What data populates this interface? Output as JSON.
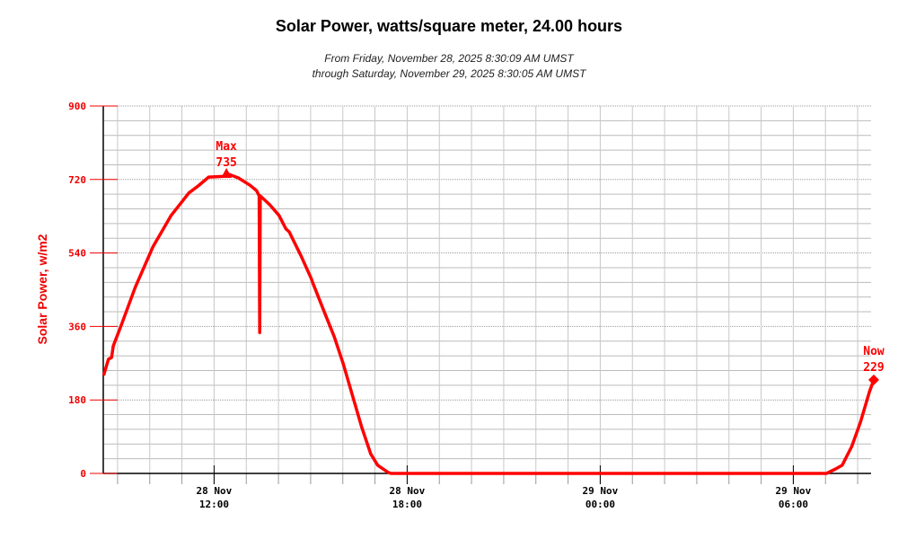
{
  "chart_data": {
    "type": "line",
    "title": "Solar Power, watts/square meter, 24.00 hours",
    "subtitle_line1": "From Friday, November 28, 2025 8:30:09 AM UMST",
    "subtitle_line2": "through Saturday, November 29, 2025 8:30:05 AM UMST",
    "ylabel": "Solar Power, w/m2",
    "xlabel": "",
    "ylim": [
      0,
      900
    ],
    "xlim": [
      "2025-11-28T08:30",
      "2025-11-29T08:30"
    ],
    "y_ticks": [
      0,
      180,
      360,
      540,
      720,
      900
    ],
    "x_ticks": [
      {
        "time": "2025-11-28T12:00",
        "line1": "28 Nov",
        "line2": "12:00"
      },
      {
        "time": "2025-11-28T18:00",
        "line1": "28 Nov",
        "line2": "18:00"
      },
      {
        "time": "2025-11-29T00:00",
        "line1": "29 Nov",
        "line2": "00:00"
      },
      {
        "time": "2025-11-29T06:00",
        "line1": "29 Nov",
        "line2": "06:00"
      }
    ],
    "grid": true,
    "color": "#ff0000",
    "series": [
      {
        "x": [
          "2025-11-28T08:34",
          "2025-11-28T08:43",
          "2025-11-28T08:49",
          "2025-11-28T08:52",
          "2025-11-28T09:08",
          "2025-11-28T09:33",
          "2025-11-28T10:06",
          "2025-11-28T10:40",
          "2025-11-28T11:13",
          "2025-11-28T11:30",
          "2025-11-28T11:50",
          "2025-11-28T12:20",
          "2025-11-28T12:23",
          "2025-11-28T12:45",
          "2025-11-28T13:07",
          "2025-11-28T13:19",
          "2025-11-28T13:24",
          "2025-11-28T13:25",
          "2025-11-28T13:26",
          "2025-11-28T13:44",
          "2025-11-28T14:01",
          "2025-11-28T14:14",
          "2025-11-28T14:20",
          "2025-11-28T14:42",
          "2025-11-28T15:01",
          "2025-11-28T15:04",
          "2025-11-28T15:24",
          "2025-11-28T15:44",
          "2025-11-28T16:01",
          "2025-11-28T16:18",
          "2025-11-28T16:35",
          "2025-11-28T16:52",
          "2025-11-28T17:05",
          "2025-11-28T17:25",
          "2025-11-28T17:30",
          "2025-11-29T07:02",
          "2025-11-29T07:19",
          "2025-11-29T07:31",
          "2025-11-29T07:49",
          "2025-11-29T08:05",
          "2025-11-29T08:22",
          "2025-11-29T08:30"
        ],
        "values": [
          240,
          280,
          284,
          312,
          367,
          456,
          555,
          632,
          687,
          704,
          726,
          728,
          735,
          724,
          706,
          693,
          680,
          345,
          680,
          658,
          632,
          599,
          592,
          533,
          478,
          467,
          400,
          335,
          268,
          191,
          114,
          48,
          20,
          2,
          0,
          0,
          11,
          20,
          66,
          125,
          200,
          229
        ]
      }
    ],
    "annotations": [
      {
        "label": "Max",
        "value": "735",
        "time": "2025-11-28T12:23",
        "y": 735,
        "marker": "triangle"
      },
      {
        "label": "Now",
        "value": "229",
        "time": "2025-11-29T08:30",
        "y": 229,
        "marker": "diamond"
      }
    ]
  }
}
